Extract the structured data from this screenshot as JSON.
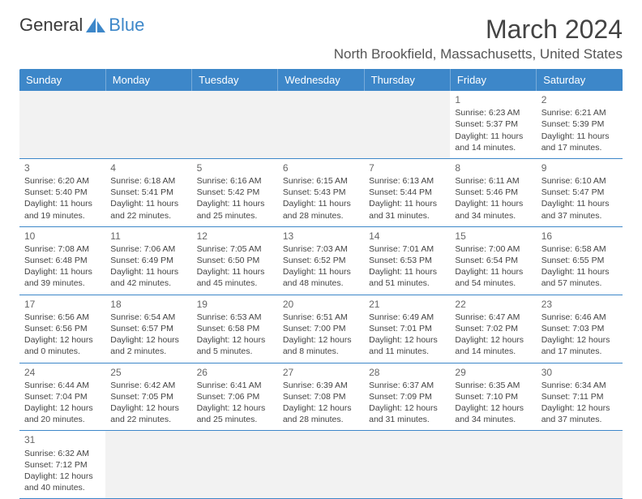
{
  "logo": {
    "text_left": "General",
    "text_right": "Blue"
  },
  "title": "March 2024",
  "location": "North Brookfield, Massachusetts, United States",
  "colors": {
    "header_bg": "#3d87c9",
    "header_text": "#ffffff",
    "border": "#3d87c9",
    "empty_bg": "#f2f2f2",
    "logo_icon": "#3d87c9"
  },
  "day_headers": [
    "Sunday",
    "Monday",
    "Tuesday",
    "Wednesday",
    "Thursday",
    "Friday",
    "Saturday"
  ],
  "weeks": [
    [
      null,
      null,
      null,
      null,
      null,
      {
        "num": "1",
        "sunrise": "6:23 AM",
        "sunset": "5:37 PM",
        "daylight": "11 hours and 14 minutes."
      },
      {
        "num": "2",
        "sunrise": "6:21 AM",
        "sunset": "5:39 PM",
        "daylight": "11 hours and 17 minutes."
      }
    ],
    [
      {
        "num": "3",
        "sunrise": "6:20 AM",
        "sunset": "5:40 PM",
        "daylight": "11 hours and 19 minutes."
      },
      {
        "num": "4",
        "sunrise": "6:18 AM",
        "sunset": "5:41 PM",
        "daylight": "11 hours and 22 minutes."
      },
      {
        "num": "5",
        "sunrise": "6:16 AM",
        "sunset": "5:42 PM",
        "daylight": "11 hours and 25 minutes."
      },
      {
        "num": "6",
        "sunrise": "6:15 AM",
        "sunset": "5:43 PM",
        "daylight": "11 hours and 28 minutes."
      },
      {
        "num": "7",
        "sunrise": "6:13 AM",
        "sunset": "5:44 PM",
        "daylight": "11 hours and 31 minutes."
      },
      {
        "num": "8",
        "sunrise": "6:11 AM",
        "sunset": "5:46 PM",
        "daylight": "11 hours and 34 minutes."
      },
      {
        "num": "9",
        "sunrise": "6:10 AM",
        "sunset": "5:47 PM",
        "daylight": "11 hours and 37 minutes."
      }
    ],
    [
      {
        "num": "10",
        "sunrise": "7:08 AM",
        "sunset": "6:48 PM",
        "daylight": "11 hours and 39 minutes."
      },
      {
        "num": "11",
        "sunrise": "7:06 AM",
        "sunset": "6:49 PM",
        "daylight": "11 hours and 42 minutes."
      },
      {
        "num": "12",
        "sunrise": "7:05 AM",
        "sunset": "6:50 PM",
        "daylight": "11 hours and 45 minutes."
      },
      {
        "num": "13",
        "sunrise": "7:03 AM",
        "sunset": "6:52 PM",
        "daylight": "11 hours and 48 minutes."
      },
      {
        "num": "14",
        "sunrise": "7:01 AM",
        "sunset": "6:53 PM",
        "daylight": "11 hours and 51 minutes."
      },
      {
        "num": "15",
        "sunrise": "7:00 AM",
        "sunset": "6:54 PM",
        "daylight": "11 hours and 54 minutes."
      },
      {
        "num": "16",
        "sunrise": "6:58 AM",
        "sunset": "6:55 PM",
        "daylight": "11 hours and 57 minutes."
      }
    ],
    [
      {
        "num": "17",
        "sunrise": "6:56 AM",
        "sunset": "6:56 PM",
        "daylight": "12 hours and 0 minutes."
      },
      {
        "num": "18",
        "sunrise": "6:54 AM",
        "sunset": "6:57 PM",
        "daylight": "12 hours and 2 minutes."
      },
      {
        "num": "19",
        "sunrise": "6:53 AM",
        "sunset": "6:58 PM",
        "daylight": "12 hours and 5 minutes."
      },
      {
        "num": "20",
        "sunrise": "6:51 AM",
        "sunset": "7:00 PM",
        "daylight": "12 hours and 8 minutes."
      },
      {
        "num": "21",
        "sunrise": "6:49 AM",
        "sunset": "7:01 PM",
        "daylight": "12 hours and 11 minutes."
      },
      {
        "num": "22",
        "sunrise": "6:47 AM",
        "sunset": "7:02 PM",
        "daylight": "12 hours and 14 minutes."
      },
      {
        "num": "23",
        "sunrise": "6:46 AM",
        "sunset": "7:03 PM",
        "daylight": "12 hours and 17 minutes."
      }
    ],
    [
      {
        "num": "24",
        "sunrise": "6:44 AM",
        "sunset": "7:04 PM",
        "daylight": "12 hours and 20 minutes."
      },
      {
        "num": "25",
        "sunrise": "6:42 AM",
        "sunset": "7:05 PM",
        "daylight": "12 hours and 22 minutes."
      },
      {
        "num": "26",
        "sunrise": "6:41 AM",
        "sunset": "7:06 PM",
        "daylight": "12 hours and 25 minutes."
      },
      {
        "num": "27",
        "sunrise": "6:39 AM",
        "sunset": "7:08 PM",
        "daylight": "12 hours and 28 minutes."
      },
      {
        "num": "28",
        "sunrise": "6:37 AM",
        "sunset": "7:09 PM",
        "daylight": "12 hours and 31 minutes."
      },
      {
        "num": "29",
        "sunrise": "6:35 AM",
        "sunset": "7:10 PM",
        "daylight": "12 hours and 34 minutes."
      },
      {
        "num": "30",
        "sunrise": "6:34 AM",
        "sunset": "7:11 PM",
        "daylight": "12 hours and 37 minutes."
      }
    ],
    [
      {
        "num": "31",
        "sunrise": "6:32 AM",
        "sunset": "7:12 PM",
        "daylight": "12 hours and 40 minutes."
      },
      null,
      null,
      null,
      null,
      null,
      null
    ]
  ]
}
